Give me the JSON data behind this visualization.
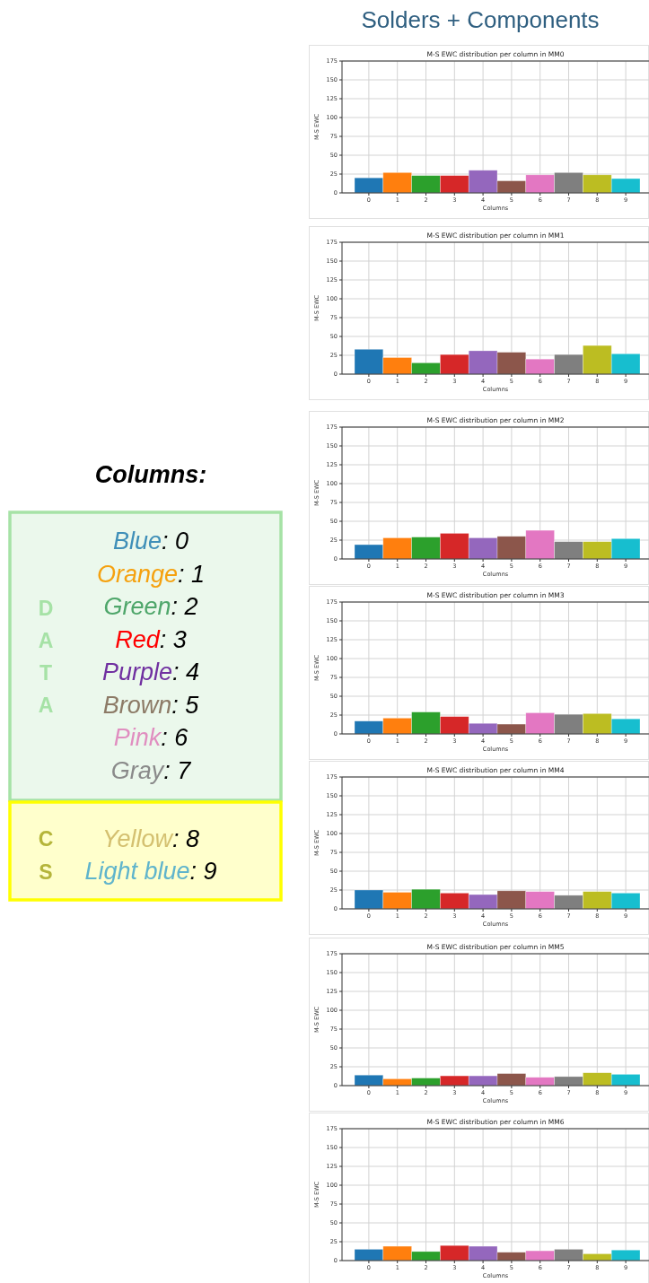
{
  "chart_data": [
    {
      "type": "other",
      "title": "Solders + Components"
    },
    {
      "type": "other",
      "title": "Columns:",
      "categories": [
        "Blue",
        "Orange",
        "Green",
        "Red",
        "Purple",
        "Brown",
        "Pink",
        "Gray"
      ],
      "value_labels": [
        ": 0",
        ": 1",
        ": 2",
        ": 3",
        ": 4",
        ": 5",
        ": 6",
        ": 7"
      ],
      "colors": [
        "#3f8fb8",
        "#f5a10f",
        "#4ea66a",
        "#ff0000",
        "#7030a0",
        "#8c7a66",
        "#e08ec0",
        "#8a8a8a"
      ],
      "color": "#a6e2a6",
      "annotations": [
        "D",
        "A",
        "T",
        "A"
      ]
    },
    {
      "type": "other",
      "categories": [
        "Yellow",
        "Light blue"
      ],
      "value_labels": [
        ": 8",
        ": 9"
      ],
      "colors": [
        "#d4c070",
        "#5fb4cc"
      ],
      "color": "#ffff00",
      "annotations": [
        "C",
        "S"
      ]
    },
    {
      "type": "bar",
      "title": "M-S EWC distribution per column in MM0",
      "xlabel": "Columns",
      "ylabel": "M-S EWC",
      "categories": [
        "0",
        "1",
        "2",
        "3",
        "4",
        "5",
        "6",
        "7",
        "8",
        "9"
      ],
      "values": [
        20,
        27,
        23,
        23,
        30,
        16,
        24,
        27,
        24,
        19
      ],
      "colors": [
        "#1f77b4",
        "#ff7f0e",
        "#2ca02c",
        "#d62728",
        "#9467bd",
        "#8c564b",
        "#e377c2",
        "#7f7f7f",
        "#bcbd22",
        "#17becf"
      ],
      "ylim": [
        0,
        175
      ],
      "yticks": [
        0,
        25,
        50,
        75,
        100,
        125,
        150,
        175
      ],
      "grid": true
    },
    {
      "type": "bar",
      "title": "M-S EWC distribution per column in MM1",
      "xlabel": "Columns",
      "ylabel": "M-S EWC",
      "categories": [
        "0",
        "1",
        "2",
        "3",
        "4",
        "5",
        "6",
        "7",
        "8",
        "9"
      ],
      "values": [
        33,
        22,
        15,
        26,
        31,
        29,
        20,
        26,
        38,
        27
      ],
      "colors": [
        "#1f77b4",
        "#ff7f0e",
        "#2ca02c",
        "#d62728",
        "#9467bd",
        "#8c564b",
        "#e377c2",
        "#7f7f7f",
        "#bcbd22",
        "#17becf"
      ],
      "ylim": [
        0,
        175
      ],
      "yticks": [
        0,
        25,
        50,
        75,
        100,
        125,
        150,
        175
      ],
      "grid": true
    },
    {
      "type": "bar",
      "title": "M-S EWC distribution per column in MM2",
      "xlabel": "Columns",
      "ylabel": "M-S EWC",
      "categories": [
        "0",
        "1",
        "2",
        "3",
        "4",
        "5",
        "6",
        "7",
        "8",
        "9"
      ],
      "values": [
        19,
        28,
        29,
        34,
        28,
        30,
        38,
        23,
        23,
        27
      ],
      "colors": [
        "#1f77b4",
        "#ff7f0e",
        "#2ca02c",
        "#d62728",
        "#9467bd",
        "#8c564b",
        "#e377c2",
        "#7f7f7f",
        "#bcbd22",
        "#17becf"
      ],
      "ylim": [
        0,
        175
      ],
      "yticks": [
        0,
        25,
        50,
        75,
        100,
        125,
        150,
        175
      ],
      "grid": true
    },
    {
      "type": "bar",
      "title": "M-S EWC distribution per column in MM3",
      "xlabel": "Columns",
      "ylabel": "M-S EWC",
      "categories": [
        "0",
        "1",
        "2",
        "3",
        "4",
        "5",
        "6",
        "7",
        "8",
        "9"
      ],
      "values": [
        17,
        21,
        29,
        23,
        14,
        13,
        28,
        26,
        27,
        20
      ],
      "colors": [
        "#1f77b4",
        "#ff7f0e",
        "#2ca02c",
        "#d62728",
        "#9467bd",
        "#8c564b",
        "#e377c2",
        "#7f7f7f",
        "#bcbd22",
        "#17becf"
      ],
      "ylim": [
        0,
        175
      ],
      "yticks": [
        0,
        25,
        50,
        75,
        100,
        125,
        150,
        175
      ],
      "grid": true
    },
    {
      "type": "bar",
      "title": "M-S EWC distribution per column in MM4",
      "xlabel": "Columns",
      "ylabel": "M-S EWC",
      "categories": [
        "0",
        "1",
        "2",
        "3",
        "4",
        "5",
        "6",
        "7",
        "8",
        "9"
      ],
      "values": [
        25,
        22,
        26,
        21,
        19,
        24,
        23,
        18,
        23,
        21
      ],
      "colors": [
        "#1f77b4",
        "#ff7f0e",
        "#2ca02c",
        "#d62728",
        "#9467bd",
        "#8c564b",
        "#e377c2",
        "#7f7f7f",
        "#bcbd22",
        "#17becf"
      ],
      "ylim": [
        0,
        175
      ],
      "yticks": [
        0,
        25,
        50,
        75,
        100,
        125,
        150,
        175
      ],
      "grid": true
    },
    {
      "type": "bar",
      "title": "M-S EWC distribution per column in MM5",
      "xlabel": "Columns",
      "ylabel": "M-S EWC",
      "categories": [
        "0",
        "1",
        "2",
        "3",
        "4",
        "5",
        "6",
        "7",
        "8",
        "9"
      ],
      "values": [
        14,
        9,
        10,
        13,
        13,
        16,
        11,
        12,
        17,
        15
      ],
      "colors": [
        "#1f77b4",
        "#ff7f0e",
        "#2ca02c",
        "#d62728",
        "#9467bd",
        "#8c564b",
        "#e377c2",
        "#7f7f7f",
        "#bcbd22",
        "#17becf"
      ],
      "ylim": [
        0,
        175
      ],
      "yticks": [
        0,
        25,
        50,
        75,
        100,
        125,
        150,
        175
      ],
      "grid": true
    },
    {
      "type": "bar",
      "title": "M-S EWC distribution per column in MM6",
      "xlabel": "Columns",
      "ylabel": "M-S EWC",
      "categories": [
        "0",
        "1",
        "2",
        "3",
        "4",
        "5",
        "6",
        "7",
        "8",
        "9"
      ],
      "values": [
        15,
        19,
        12,
        20,
        19,
        11,
        13,
        15,
        9,
        14
      ],
      "colors": [
        "#1f77b4",
        "#ff7f0e",
        "#2ca02c",
        "#d62728",
        "#9467bd",
        "#8c564b",
        "#e377c2",
        "#7f7f7f",
        "#bcbd22",
        "#17becf"
      ],
      "ylim": [
        0,
        175
      ],
      "yticks": [
        0,
        25,
        50,
        75,
        100,
        125,
        150,
        175
      ],
      "grid": true
    }
  ]
}
